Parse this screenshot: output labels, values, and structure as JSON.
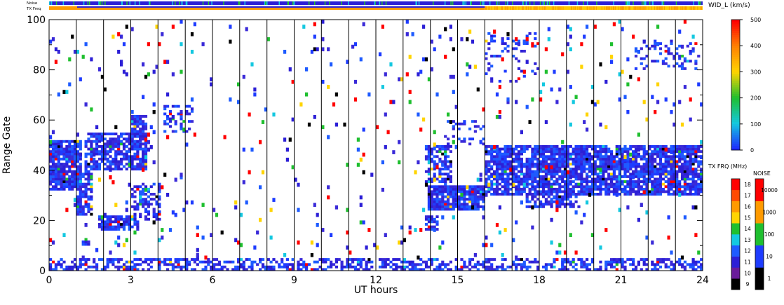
{
  "chart_data": [
    {
      "type": "heatmap",
      "title": "",
      "xlabel": "UT hours",
      "ylabel": "Range Gate",
      "xlim": [
        0,
        24
      ],
      "ylim": [
        0,
        100
      ],
      "x_ticks": [
        "0",
        "3",
        "6",
        "9",
        "12",
        "15",
        "18",
        "21",
        "24"
      ],
      "y_ticks": [
        "0",
        "20",
        "40",
        "60",
        "80",
        "100"
      ],
      "hour_gridlines": true,
      "top_strips": {
        "noise_label": "Noise",
        "freq_label": "TX Freq",
        "freq_change_hour": 16
      },
      "echo_regions": [
        {
          "x0": 0.0,
          "x1": 1.2,
          "y0": 32,
          "y1": 52,
          "density": 0.85
        },
        {
          "x0": 1.0,
          "x1": 1.6,
          "y0": 22,
          "y1": 40,
          "density": 0.75
        },
        {
          "x0": 1.3,
          "x1": 3.6,
          "y0": 40,
          "y1": 55,
          "density": 0.75
        },
        {
          "x0": 3.0,
          "x1": 3.6,
          "y0": 48,
          "y1": 62,
          "density": 0.7
        },
        {
          "x0": 1.8,
          "x1": 3.3,
          "y0": 16,
          "y1": 22,
          "density": 0.75
        },
        {
          "x0": 3.0,
          "x1": 4.1,
          "y0": 20,
          "y1": 35,
          "density": 0.45
        },
        {
          "x0": 1.1,
          "x1": 1.5,
          "y0": 10,
          "y1": 14,
          "density": 0.6
        },
        {
          "x0": 4.2,
          "x1": 5.3,
          "y0": 55,
          "y1": 66,
          "density": 0.35
        },
        {
          "x0": 13.9,
          "x1": 16.0,
          "y0": 24,
          "y1": 34,
          "density": 0.9
        },
        {
          "x0": 13.8,
          "x1": 14.8,
          "y0": 34,
          "y1": 50,
          "density": 0.55
        },
        {
          "x0": 14.5,
          "x1": 16.0,
          "y0": 50,
          "y1": 60,
          "density": 0.3
        },
        {
          "x0": 13.8,
          "x1": 14.3,
          "y0": 16,
          "y1": 22,
          "density": 0.7
        },
        {
          "x0": 16.0,
          "x1": 24.0,
          "y0": 30,
          "y1": 50,
          "density": 0.8
        },
        {
          "x0": 17.5,
          "x1": 19.5,
          "y0": 25,
          "y1": 32,
          "density": 0.6
        },
        {
          "x0": 16.0,
          "x1": 18.0,
          "y0": 75,
          "y1": 95,
          "density": 0.15
        },
        {
          "x0": 21.5,
          "x1": 24.0,
          "y0": 80,
          "y1": 92,
          "density": 0.25
        },
        {
          "x0": 0.0,
          "x1": 24.0,
          "y0": 0,
          "y1": 5,
          "density": 0.5
        },
        {
          "x0": 0.0,
          "x1": 24.0,
          "y0": 5,
          "y1": 100,
          "density": 0.025
        }
      ]
    },
    {
      "type": "colorbar",
      "title": "WID_L (km/s)",
      "ticks": [
        "0",
        "100",
        "200",
        "300",
        "400",
        "500"
      ],
      "range": [
        0,
        500
      ]
    },
    {
      "type": "colorbar",
      "title": "TX FRQ (MHz)",
      "ticks": [
        "9",
        "10",
        "11",
        "12",
        "13",
        "14",
        "15",
        "16",
        "17",
        "18"
      ],
      "colors": [
        "#000000",
        "#6a1b9a",
        "#2c1fd6",
        "#1e5bff",
        "#14c8e0",
        "#1fbf2f",
        "#ffd400",
        "#ff9a00",
        "#ff4b00",
        "#ff0000"
      ]
    },
    {
      "type": "colorbar",
      "title": "NOISE",
      "ticks": [
        "1",
        "10",
        "100",
        "1000",
        "10000"
      ],
      "colors": [
        "#000000",
        "#1e3cff",
        "#1fbf2f",
        "#ff9a00",
        "#ff0000"
      ]
    }
  ]
}
